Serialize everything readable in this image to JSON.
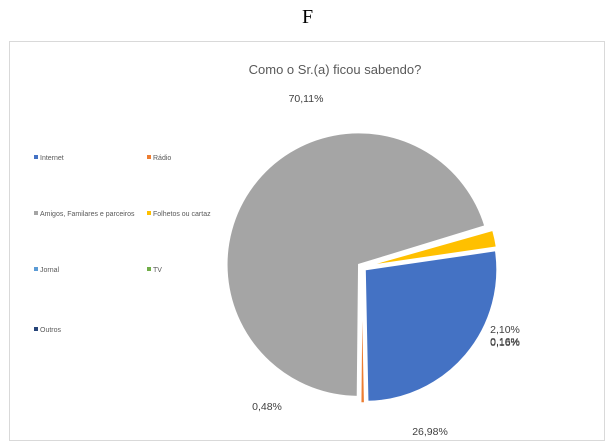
{
  "figure_letter": "F",
  "chart_data": {
    "type": "pie",
    "title": "Como o Sr.(a) ficou sabendo?",
    "categories": [
      "Internet",
      "Rádio",
      "Amigos, Familares e parceiros",
      "Folhetos ou cartaz",
      "Jornal",
      "TV",
      "Outros"
    ],
    "values": [
      26.98,
      0.48,
      70.11,
      2.1,
      0.16,
      0.16,
      0.0
    ],
    "value_labels": [
      "26,98%",
      "0,48%",
      "70,11%",
      "2,10%",
      "0,16%",
      "0,16%",
      ""
    ],
    "colors": [
      "#4472c4",
      "#ed7d31",
      "#a5a5a5",
      "#ffc000",
      "#5b9bd5",
      "#70ad47",
      "#264478"
    ],
    "legend_position": "left",
    "exploded": true
  }
}
